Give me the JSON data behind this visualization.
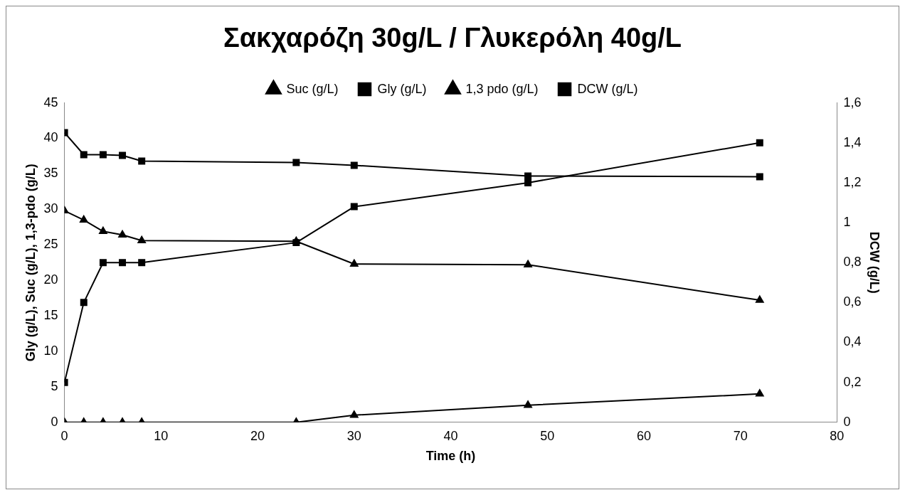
{
  "chart_data": {
    "type": "line",
    "title": "Σακχαρόζη 30g/L / Γλυκερόλη 40g/L",
    "xlabel": "Time (h)",
    "ylabel": "Gly (g/L), Suc (g/L), 1,3-pdo (g/L)",
    "y2label": "DCW (g/L)",
    "x": [
      0,
      2,
      4,
      6,
      8,
      24,
      30,
      48,
      72
    ],
    "series": [
      {
        "name": "Suc (g/L)",
        "color": "#000000",
        "marker": "triangle",
        "values": [
          29.8,
          28.5,
          26.9,
          26.4,
          25.6,
          25.5,
          22.3,
          22.2,
          17.2
        ]
      },
      {
        "name": "Gly (g/L)",
        "color": "#000000",
        "marker": "square",
        "values": [
          40.8,
          37.7,
          37.7,
          37.6,
          36.8,
          36.6,
          36.2,
          34.7,
          34.6
        ]
      },
      {
        "name": "1,3 pdo (g/L)",
        "color": "#000000",
        "marker": "triangle",
        "values": [
          0,
          0,
          0,
          0,
          0,
          0,
          1,
          2.4,
          4
        ]
      },
      {
        "name": "DCW (g/L)",
        "color": "#000000",
        "marker": "square",
        "axis": "y2",
        "values": [
          0.2,
          0.6,
          0.8,
          0.8,
          0.8,
          0.9,
          1.08,
          1.2,
          1.4
        ]
      }
    ],
    "xlim": [
      0,
      80
    ],
    "xticks": [
      0,
      10,
      20,
      30,
      40,
      50,
      60,
      70,
      80
    ],
    "ylim": [
      0,
      45
    ],
    "yticks": [
      0,
      5,
      10,
      15,
      20,
      25,
      30,
      35,
      40,
      45
    ],
    "y2lim": [
      0,
      1.6
    ],
    "y2ticks": [
      0,
      {
        "value": 0.2,
        "label": "0,2"
      },
      {
        "value": 0.4,
        "label": "0,4"
      },
      {
        "value": 0.6,
        "label": "0,6"
      },
      {
        "value": 0.8,
        "label": "0,8"
      },
      1,
      {
        "value": 1.2,
        "label": "1,2"
      },
      {
        "value": 1.4,
        "label": "1,4"
      },
      {
        "value": 1.6,
        "label": "1,6"
      }
    ],
    "grid": false,
    "legend": "top",
    "line_style": "solid"
  }
}
